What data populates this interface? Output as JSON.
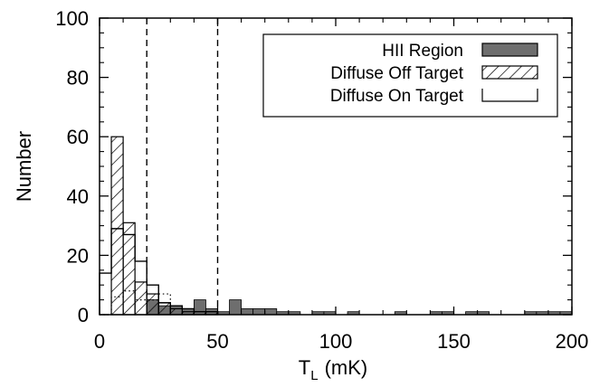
{
  "chart_data": {
    "type": "bar",
    "histogram": true,
    "xlabel": "T",
    "xlabel_subscript": "L",
    "xlabel_unit": "(mK)",
    "ylabel": "Number",
    "xlim": [
      0,
      200
    ],
    "ylim": [
      0,
      100
    ],
    "xticks": [
      0,
      50,
      100,
      150,
      200
    ],
    "yticks": [
      0,
      20,
      40,
      60,
      80,
      100
    ],
    "bin_width": 5,
    "grid": false,
    "legend_position": "top-right",
    "reference_lines": [
      20,
      50
    ],
    "series": [
      {
        "name": "HII Region",
        "style": "filled",
        "bins": [
          {
            "x": 20,
            "count": 5
          },
          {
            "x": 25,
            "count": 3
          },
          {
            "x": 30,
            "count": 3
          },
          {
            "x": 35,
            "count": 2
          },
          {
            "x": 40,
            "count": 5
          },
          {
            "x": 45,
            "count": 2
          },
          {
            "x": 50,
            "count": 1
          },
          {
            "x": 55,
            "count": 5
          },
          {
            "x": 60,
            "count": 2
          },
          {
            "x": 65,
            "count": 2
          },
          {
            "x": 70,
            "count": 2
          },
          {
            "x": 75,
            "count": 1
          },
          {
            "x": 80,
            "count": 1
          },
          {
            "x": 90,
            "count": 1
          },
          {
            "x": 95,
            "count": 1
          },
          {
            "x": 105,
            "count": 1
          },
          {
            "x": 125,
            "count": 1
          },
          {
            "x": 140,
            "count": 1
          },
          {
            "x": 145,
            "count": 1
          },
          {
            "x": 155,
            "count": 1
          },
          {
            "x": 160,
            "count": 1
          },
          {
            "x": 180,
            "count": 1
          },
          {
            "x": 185,
            "count": 1
          },
          {
            "x": 190,
            "count": 1
          },
          {
            "x": 195,
            "count": 1
          }
        ]
      },
      {
        "name": "Diffuse Off Target",
        "style": "hatched",
        "bins": [
          {
            "x": 0,
            "count": 0
          },
          {
            "x": 5,
            "count": 60
          },
          {
            "x": 10,
            "count": 31
          },
          {
            "x": 15,
            "count": 11
          },
          {
            "x": 20,
            "count": 7
          },
          {
            "x": 25,
            "count": 4
          },
          {
            "x": 30,
            "count": 2
          },
          {
            "x": 35,
            "count": 1
          },
          {
            "x": 40,
            "count": 1
          },
          {
            "x": 45,
            "count": 1
          }
        ]
      },
      {
        "name": "Diffuse On Target",
        "style": "open",
        "bins": [
          {
            "x": 0,
            "count": 14
          },
          {
            "x": 5,
            "count": 29
          },
          {
            "x": 10,
            "count": 27
          },
          {
            "x": 15,
            "count": 18
          },
          {
            "x": 20,
            "count": 10
          },
          {
            "x": 25,
            "count": 4
          },
          {
            "x": 30,
            "count": 3
          },
          {
            "x": 35,
            "count": 2
          },
          {
            "x": 40,
            "count": 1
          },
          {
            "x": 45,
            "count": 1
          }
        ]
      },
      {
        "name": "",
        "style": "dotted",
        "bins": [
          {
            "x": 0,
            "count": 0
          },
          {
            "x": 5,
            "count": 6
          },
          {
            "x": 10,
            "count": 8
          },
          {
            "x": 15,
            "count": 5
          },
          {
            "x": 20,
            "count": 5
          },
          {
            "x": 25,
            "count": 7
          }
        ]
      }
    ]
  }
}
